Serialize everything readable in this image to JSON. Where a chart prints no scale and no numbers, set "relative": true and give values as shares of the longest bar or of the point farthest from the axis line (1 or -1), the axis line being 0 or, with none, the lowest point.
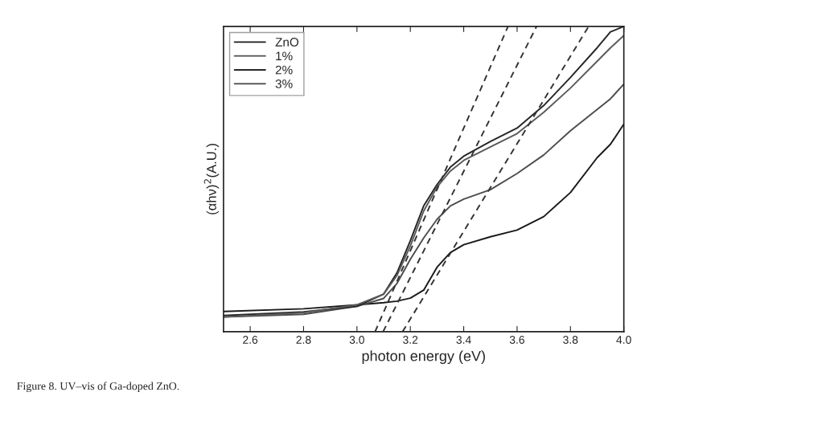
{
  "chart_data": {
    "type": "line",
    "xlabel": "photon energy (eV)",
    "ylabel": "(αhν)$^{2}$(A.U.)",
    "relative": true,
    "xlim": [
      2.5,
      4.0
    ],
    "xticks": [
      2.6,
      2.8,
      {
        "value": 3.0,
        "label": "3.0"
      },
      3.2,
      3.4,
      3.6,
      3.8,
      {
        "value": 4.0,
        "label": "4.0"
      }
    ],
    "legend": "top left",
    "grid": false,
    "annotations": [
      "Figure 8. UV–vis of Ga-doped ZnO."
    ],
    "x": [
      2.5,
      2.8,
      3.0,
      3.1,
      3.15,
      3.2,
      3.25,
      3.3,
      3.35,
      3.4,
      3.5,
      3.6,
      3.7,
      3.8,
      3.9,
      3.95,
      4.0
    ],
    "series": [
      {
        "name": "ZnO",
        "color": "#1a1a1a",
        "values": [
          0.066,
          0.075,
          0.088,
          0.095,
          0.1,
          0.11,
          0.136,
          0.211,
          0.259,
          0.285,
          0.311,
          0.333,
          0.377,
          0.456,
          0.57,
          0.614,
          0.68
        ]
      },
      {
        "name": "1%",
        "color": "#4d4d4d",
        "values": [
          0.048,
          0.057,
          0.083,
          0.109,
          0.158,
          0.237,
          0.307,
          0.368,
          0.412,
          0.434,
          0.465,
          0.518,
          0.579,
          0.658,
          0.728,
          0.763,
          0.811
        ]
      },
      {
        "name": "2%",
        "color": "#262626",
        "values": [
          0.053,
          0.065,
          0.083,
          0.123,
          0.193,
          0.298,
          0.412,
          0.482,
          0.539,
          0.575,
          0.623,
          0.667,
          0.741,
          0.833,
          0.93,
          0.982,
          1.0
        ]
      },
      {
        "name": "3%",
        "color": "#5a5a5a",
        "values": [
          0.048,
          0.062,
          0.088,
          0.123,
          0.184,
          0.281,
          0.395,
          0.474,
          0.526,
          0.561,
          0.605,
          0.649,
          0.719,
          0.798,
          0.886,
          0.93,
          0.97
        ]
      },
      {
        "type": "line",
        "color": "#333333",
        "line_style": "dashed",
        "x": [
          3.068,
          3.566
        ],
        "values": [
          0,
          1
        ]
      },
      {
        "type": "line",
        "color": "#333333",
        "line_style": "dashed",
        "x": [
          3.098,
          3.673
        ],
        "values": [
          0,
          1
        ]
      },
      {
        "type": "line",
        "color": "#333333",
        "line_style": "dashed",
        "x": [
          3.171,
          3.868
        ],
        "values": [
          0,
          1
        ]
      }
    ]
  }
}
